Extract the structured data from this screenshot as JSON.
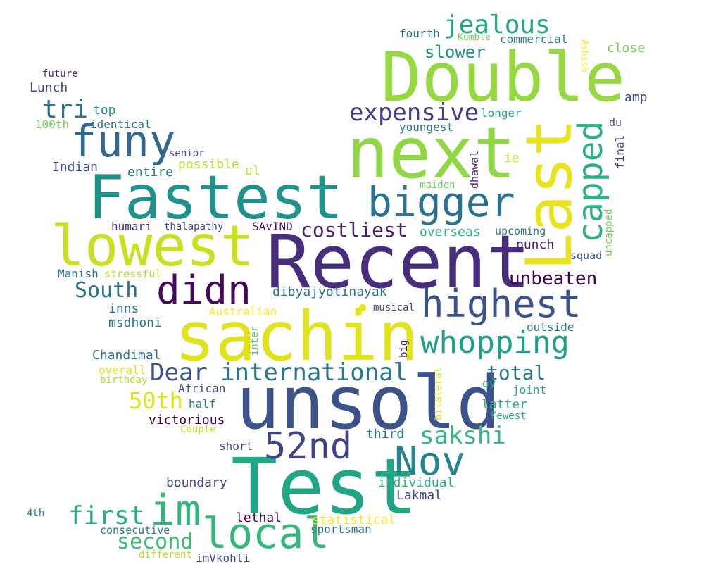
{
  "words": [
    {
      "text": "Recent",
      "color": "#472d7b"
    },
    {
      "text": "unsold",
      "color": "#3b528b"
    },
    {
      "text": "Test",
      "color": "#21a685"
    },
    {
      "text": "sachin",
      "color": "#e0e31b"
    },
    {
      "text": "next",
      "color": "#8fd744"
    },
    {
      "text": "Double",
      "color": "#95d840"
    },
    {
      "text": "Fastest",
      "color": "#20928c"
    },
    {
      "text": "lowest",
      "color": "#c8e020"
    },
    {
      "text": "Last",
      "color": "#e8e419"
    },
    {
      "text": "funy",
      "color": "#31688e"
    },
    {
      "text": "bigger",
      "color": "#2c728e"
    },
    {
      "text": "highest",
      "color": "#3b528b"
    },
    {
      "text": "didn",
      "color": "#46085c"
    },
    {
      "text": "im",
      "color": "#31b57b"
    },
    {
      "text": "local",
      "color": "#35b779"
    },
    {
      "text": "52nd",
      "color": "#414487"
    },
    {
      "text": "Nov",
      "color": "#25858e"
    },
    {
      "text": "whopping",
      "color": "#1f9e89"
    },
    {
      "text": "capped",
      "color": "#2db27d"
    },
    {
      "text": "expensive",
      "color": "#433e85"
    },
    {
      "text": "jealous",
      "color": "#22a884"
    },
    {
      "text": "Dear",
      "color": "#3b528b"
    },
    {
      "text": "international",
      "color": "#2a788e"
    },
    {
      "text": "tri",
      "color": "#2c728e"
    },
    {
      "text": "South",
      "color": "#2c728e"
    },
    {
      "text": "costliest",
      "color": "#481f70"
    },
    {
      "text": "unbeaten",
      "color": "#440154"
    },
    {
      "text": "sakshi",
      "color": "#35b779"
    },
    {
      "text": "50th",
      "color": "#dde318"
    },
    {
      "text": "first",
      "color": "#29af7f"
    },
    {
      "text": "second",
      "color": "#3bbb75"
    },
    {
      "text": "total",
      "color": "#2a788e"
    },
    {
      "text": "slower",
      "color": "#21918c"
    },
    {
      "text": "Lunch",
      "color": "#3e4a89"
    },
    {
      "text": "top",
      "color": "#21918c"
    },
    {
      "text": "100th",
      "color": "#6ece58"
    },
    {
      "text": "identical",
      "color": "#2a788e"
    },
    {
      "text": "future",
      "color": "#472d7b"
    },
    {
      "text": "fourth",
      "color": "#2c728e"
    },
    {
      "text": "Kumble",
      "color": "#6ece58"
    },
    {
      "text": "commercial",
      "color": "#2a788e"
    },
    {
      "text": "Ashish",
      "color": "#fde725"
    },
    {
      "text": "close",
      "color": "#75d054"
    },
    {
      "text": "amp",
      "color": "#3e4a89"
    },
    {
      "text": "longer",
      "color": "#22a884"
    },
    {
      "text": "youngest",
      "color": "#2a788e"
    },
    {
      "text": "du",
      "color": "#3e4a89"
    },
    {
      "text": "final",
      "color": "#414487"
    },
    {
      "text": "dhawal",
      "color": "#482878"
    },
    {
      "text": "ie",
      "color": "#bddf26"
    },
    {
      "text": "senior",
      "color": "#3e4a89"
    },
    {
      "text": "possible",
      "color": "#b5de2b"
    },
    {
      "text": "Indian",
      "color": "#3e4a89"
    },
    {
      "text": "entire",
      "color": "#2a788e"
    },
    {
      "text": "ul",
      "color": "#b5de2b"
    },
    {
      "text": "maiden",
      "color": "#6ece58"
    },
    {
      "text": "uncapped",
      "color": "#6ece58"
    },
    {
      "text": "humari",
      "color": "#482878"
    },
    {
      "text": "thalapathy",
      "color": "#3e4a89"
    },
    {
      "text": "SAvIND",
      "color": "#471063"
    },
    {
      "text": "overseas",
      "color": "#2db27d"
    },
    {
      "text": "upcoming",
      "color": "#2a788e"
    },
    {
      "text": "punch",
      "color": "#481f70"
    },
    {
      "text": "squad",
      "color": "#3e4a89"
    },
    {
      "text": "Manish",
      "color": "#2a788e"
    },
    {
      "text": "stressful",
      "color": "#b5de2b"
    },
    {
      "text": "dibyajyotinayak",
      "color": "#2c728e"
    },
    {
      "text": "inns",
      "color": "#2a788e"
    },
    {
      "text": "Australian",
      "color": "#fde725"
    },
    {
      "text": "musical",
      "color": "#414487"
    },
    {
      "text": "msdhoni",
      "color": "#2c728e"
    },
    {
      "text": "outside",
      "color": "#2a788e"
    },
    {
      "text": "inter",
      "color": "#52c569"
    },
    {
      "text": "big",
      "color": "#481f70"
    },
    {
      "text": "Chandimal",
      "color": "#2c728e"
    },
    {
      "text": "overall",
      "color": "#e0e31b"
    },
    {
      "text": "birthday",
      "color": "#b5de2b"
    },
    {
      "text": "African",
      "color": "#3e4a89"
    },
    {
      "text": "half",
      "color": "#2a788e"
    },
    {
      "text": "ov",
      "color": "#22a884"
    },
    {
      "text": "joint",
      "color": "#22a884"
    },
    {
      "text": "bilateral",
      "color": "#e0e31b"
    },
    {
      "text": "latter",
      "color": "#2db27d"
    },
    {
      "text": "Fewest",
      "color": "#22a884"
    },
    {
      "text": "victorious",
      "color": "#440154"
    },
    {
      "text": "Couple",
      "color": "#c8e020"
    },
    {
      "text": "third",
      "color": "#2a788e"
    },
    {
      "text": "short",
      "color": "#3e4a89"
    },
    {
      "text": "boundary",
      "color": "#3e4a89"
    },
    {
      "text": "individual",
      "color": "#2db27d"
    },
    {
      "text": "Lakmal",
      "color": "#414487"
    },
    {
      "text": "4th",
      "color": "#2a788e"
    },
    {
      "text": "lethal",
      "color": "#440154"
    },
    {
      "text": "statistical",
      "color": "#fde725"
    },
    {
      "text": "consecutive",
      "color": "#2a788e"
    },
    {
      "text": "sportsman",
      "color": "#2a788e"
    },
    {
      "text": "different",
      "color": "#b5de2b"
    },
    {
      "text": "imVkohli",
      "color": "#3e4a89"
    }
  ],
  "dot": {
    "color": "#e8e419"
  }
}
